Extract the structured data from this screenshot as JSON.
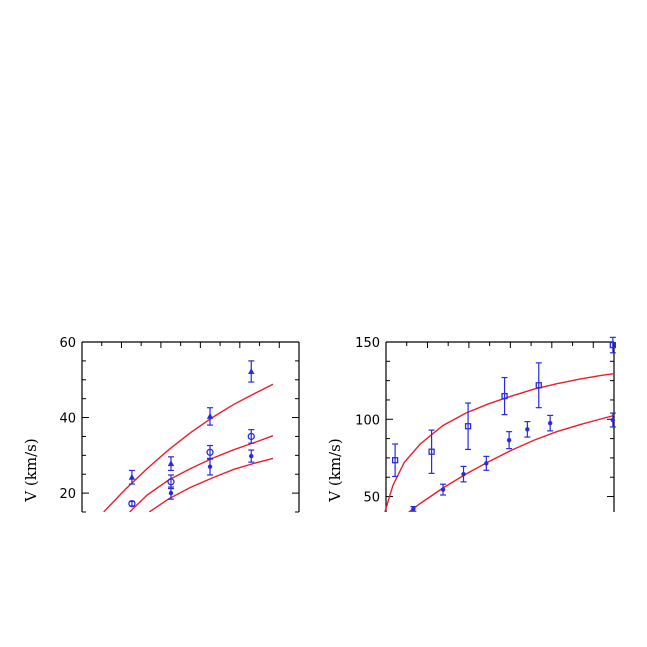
{
  "colors": {
    "model": "#e8202a",
    "data": "#2a2ae0",
    "axis": "#000000"
  },
  "chart_data": [
    {
      "type": "scatter",
      "title": "",
      "xlabel": "",
      "ylabel": "V (km/s)",
      "ylim": [
        15,
        60
      ],
      "yticks": [
        {
          "value": 20,
          "label": "20"
        },
        {
          "value": 40,
          "label": "40"
        },
        {
          "value": 60,
          "label": "60"
        }
      ],
      "xlim": [
        0,
        10
      ],
      "grid": false,
      "series": [
        {
          "marker": "triangle",
          "points": [
            {
              "x": 2.3,
              "y": 24.2,
              "err": 1.8
            },
            {
              "x": 4.1,
              "y": 27.8,
              "err": 1.8
            },
            {
              "x": 5.9,
              "y": 40.3,
              "err": 2.3
            },
            {
              "x": 7.8,
              "y": 52.2,
              "err": 2.8
            }
          ]
        },
        {
          "marker": "circle",
          "points": [
            {
              "x": 2.3,
              "y": 17.2,
              "err": 0.6
            },
            {
              "x": 4.1,
              "y": 23.0,
              "err": 1.8
            },
            {
              "x": 5.9,
              "y": 30.8,
              "err": 1.8
            },
            {
              "x": 7.8,
              "y": 35.0,
              "err": 1.8
            }
          ]
        },
        {
          "marker": "dot",
          "points": [
            {
              "x": 4.1,
              "y": 20.0,
              "err": 1.6
            },
            {
              "x": 5.9,
              "y": 27.0,
              "err": 2.2
            },
            {
              "x": 7.8,
              "y": 29.8,
              "err": 1.6
            }
          ]
        }
      ],
      "curves": [
        {
          "points": [
            [
              1.0,
              15.0
            ],
            [
              2.0,
              21.0
            ],
            [
              3.0,
              26.5
            ],
            [
              4.0,
              31.5
            ],
            [
              5.0,
              36.0
            ],
            [
              6.0,
              40.0
            ],
            [
              7.0,
              43.5
            ],
            [
              8.0,
              46.5
            ],
            [
              8.8,
              48.8
            ]
          ]
        },
        {
          "points": [
            [
              2.2,
              15.0
            ],
            [
              3.0,
              19.5
            ],
            [
              4.0,
              23.5
            ],
            [
              5.0,
              26.5
            ],
            [
              6.0,
              29.2
            ],
            [
              7.0,
              31.5
            ],
            [
              8.0,
              33.5
            ],
            [
              8.8,
              35.2
            ]
          ]
        },
        {
          "points": [
            [
              3.1,
              15.0
            ],
            [
              4.0,
              18.5
            ],
            [
              5.0,
              21.5
            ],
            [
              6.0,
              24.0
            ],
            [
              7.0,
              26.3
            ],
            [
              8.0,
              28.0
            ],
            [
              8.8,
              29.2
            ]
          ]
        }
      ]
    },
    {
      "type": "scatter",
      "title": "",
      "xlabel": "",
      "ylabel": "V (km/s)",
      "ylim": [
        40,
        150
      ],
      "yticks": [
        {
          "value": 50,
          "label": "50"
        },
        {
          "value": 100,
          "label": "100"
        },
        {
          "value": 150,
          "label": "150"
        }
      ],
      "xlim": [
        0,
        10
      ],
      "grid": false,
      "series": [
        {
          "marker": "square",
          "points": [
            {
              "x": 0.4,
              "y": 73.5,
              "err": 10.5
            },
            {
              "x": 2.0,
              "y": 79.0,
              "err": 14.0
            },
            {
              "x": 3.6,
              "y": 95.5,
              "err": 15.0
            },
            {
              "x": 5.2,
              "y": 115.0,
              "err": 12.0
            },
            {
              "x": 6.7,
              "y": 122.0,
              "err": 14.5
            },
            {
              "x": 9.95,
              "y": 148.0,
              "err": 5.0
            }
          ]
        },
        {
          "marker": "dot",
          "points": [
            {
              "x": 1.2,
              "y": 42.0,
              "err": 1.5
            },
            {
              "x": 2.5,
              "y": 54.5,
              "err": 3.5
            },
            {
              "x": 3.4,
              "y": 64.5,
              "err": 5.0
            },
            {
              "x": 4.4,
              "y": 71.5,
              "err": 4.5
            },
            {
              "x": 5.4,
              "y": 86.5,
              "err": 5.5
            },
            {
              "x": 6.2,
              "y": 93.5,
              "err": 5.0
            },
            {
              "x": 7.2,
              "y": 97.5,
              "err": 5.0
            },
            {
              "x": 9.95,
              "y": 99.5,
              "err": 4.5
            }
          ]
        }
      ],
      "curves": [
        {
          "points": [
            [
              -0.05,
              40.0
            ],
            [
              0.3,
              57.0
            ],
            [
              0.8,
              72.0
            ],
            [
              1.5,
              84.0
            ],
            [
              2.5,
              96.0
            ],
            [
              3.5,
              104.0
            ],
            [
              4.5,
              110.0
            ],
            [
              5.5,
              115.0
            ],
            [
              6.5,
              119.5
            ],
            [
              7.5,
              123.0
            ],
            [
              8.5,
              126.0
            ],
            [
              9.5,
              128.5
            ],
            [
              10.0,
              129.5
            ]
          ]
        },
        {
          "points": [
            [
              1.0,
              40.0
            ],
            [
              1.5,
              45.5
            ],
            [
              2.5,
              55.5
            ],
            [
              3.5,
              64.5
            ],
            [
              4.5,
              72.5
            ],
            [
              5.5,
              80.0
            ],
            [
              6.5,
              86.5
            ],
            [
              7.5,
              92.0
            ],
            [
              8.5,
              96.5
            ],
            [
              9.5,
              100.5
            ],
            [
              10.0,
              102.5
            ]
          ]
        }
      ]
    }
  ]
}
